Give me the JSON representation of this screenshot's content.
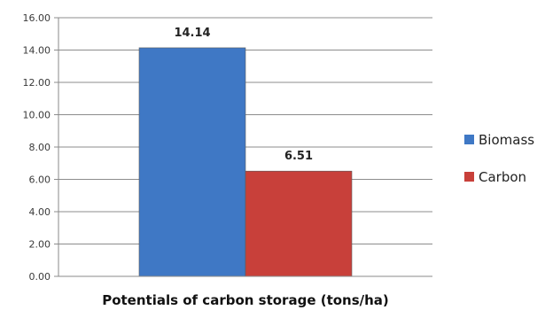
{
  "chart_data": {
    "type": "bar",
    "categories": [
      ""
    ],
    "series": [
      {
        "name": "Biomass",
        "values": [
          14.14
        ],
        "color": "#3f78c5",
        "data_label": "14.14"
      },
      {
        "name": "Carbon",
        "values": [
          6.51
        ],
        "color": "#c8403a",
        "data_label": "6.51"
      }
    ],
    "title": "",
    "xlabel": "Potentials of carbon storage (tons/ha)",
    "ylabel": "",
    "ylim": [
      0,
      16
    ],
    "yticks": [
      "0.00",
      "2.00",
      "4.00",
      "6.00",
      "8.00",
      "10.00",
      "12.00",
      "14.00",
      "16.00"
    ],
    "grid": true,
    "legend_position": "right"
  }
}
